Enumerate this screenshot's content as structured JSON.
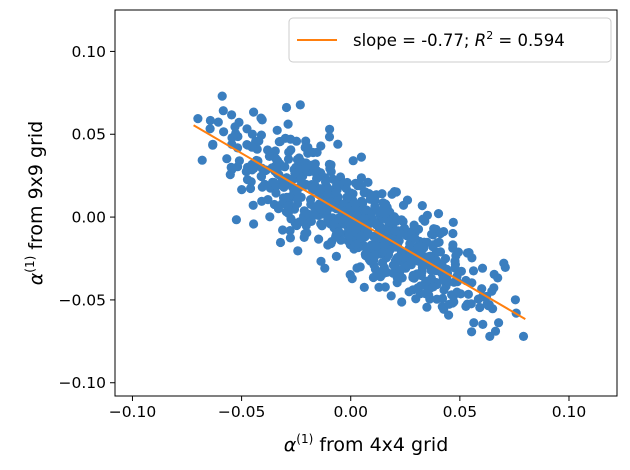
{
  "chart_data": {
    "type": "scatter",
    "title": "",
    "xlabel": {
      "prefix": "α",
      "sup": "(1)",
      "suffix": " from 4x4 grid"
    },
    "ylabel": {
      "prefix": "α",
      "sup": "(1)",
      "suffix": " from 9x9 grid"
    },
    "xlim": [
      -0.108,
      0.122
    ],
    "ylim": [
      -0.108,
      0.125
    ],
    "xticks": [
      -0.1,
      -0.05,
      0.0,
      0.05,
      0.1
    ],
    "xtick_labels": [
      "−0.10",
      "−0.05",
      "0.00",
      "0.05",
      "0.10"
    ],
    "yticks": [
      -0.1,
      -0.05,
      0.0,
      0.05,
      0.1
    ],
    "ytick_labels": [
      "−0.10",
      "−0.05",
      "0.00",
      "0.05",
      "0.10"
    ],
    "grid": false,
    "legend_position": "top-right",
    "colors": {
      "points": "#3a7ebf",
      "fit_line": "#ff7f0e"
    },
    "fit_line": {
      "slope": -0.77,
      "x": [
        -0.072,
        0.08
      ],
      "legend": {
        "text_before": "slope = -0.77; ",
        "r_symbol": "R",
        "sup": "2",
        "text_after": " = 0.594"
      }
    },
    "scatter": {
      "n_points": 700,
      "x_range": [
        -0.072,
        0.08
      ],
      "correlation_slope": -0.77,
      "r_squared": 0.594,
      "y_at_x0": 0.0
    }
  }
}
